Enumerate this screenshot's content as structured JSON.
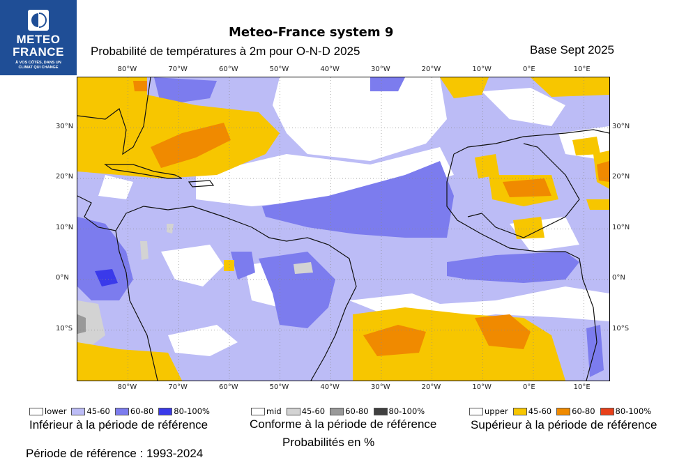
{
  "logo": {
    "name": "METEO FRANCE",
    "line1": "METEO",
    "line2": "FRANCE",
    "tagline1": "À VOS CÔTÉS, DANS UN",
    "tagline2": "CLIMAT QUI CHANGE"
  },
  "header": {
    "title": "Meteo-France system 9",
    "subtitle": "Probabilité de températures à 2m pour O-N-D 2025",
    "base": "Base Sept 2025"
  },
  "map": {
    "lon_ticks": [
      "80°W",
      "70°W",
      "60°W",
      "50°W",
      "40°W",
      "30°W",
      "20°W",
      "10°W",
      "0°E",
      "10°E"
    ],
    "lat_ticks": [
      "30°N",
      "20°N",
      "10°N",
      "0°N",
      "10°S"
    ],
    "extent": {
      "lon": [
        -90,
        15
      ],
      "lat": [
        -20,
        40
      ]
    }
  },
  "legend": {
    "groups": [
      {
        "items": [
          {
            "label": "lower",
            "color": "#ffffff"
          },
          {
            "label": "45-60",
            "color": "#bcbcf6"
          },
          {
            "label": "60-80",
            "color": "#7c7cee"
          },
          {
            "label": "80-100%",
            "color": "#3a3aea"
          }
        ],
        "caption": "Inférieur à la période de référence"
      },
      {
        "items": [
          {
            "label": "mid",
            "color": "#ffffff"
          },
          {
            "label": "45-60",
            "color": "#d3d3d3"
          },
          {
            "label": "60-80",
            "color": "#999999"
          },
          {
            "label": "80-100%",
            "color": "#404040"
          }
        ],
        "caption": "Conforme à la période de référence"
      },
      {
        "items": [
          {
            "label": "upper",
            "color": "#ffffff"
          },
          {
            "label": "45-60",
            "color": "#f7c600"
          },
          {
            "label": "60-80",
            "color": "#f08a00"
          },
          {
            "label": "80-100%",
            "color": "#e8401a"
          }
        ],
        "caption": "Supérieur à la période de référence"
      }
    ],
    "units": "Probabilités en %",
    "reference": "Période de référence : 1993-2024"
  }
}
